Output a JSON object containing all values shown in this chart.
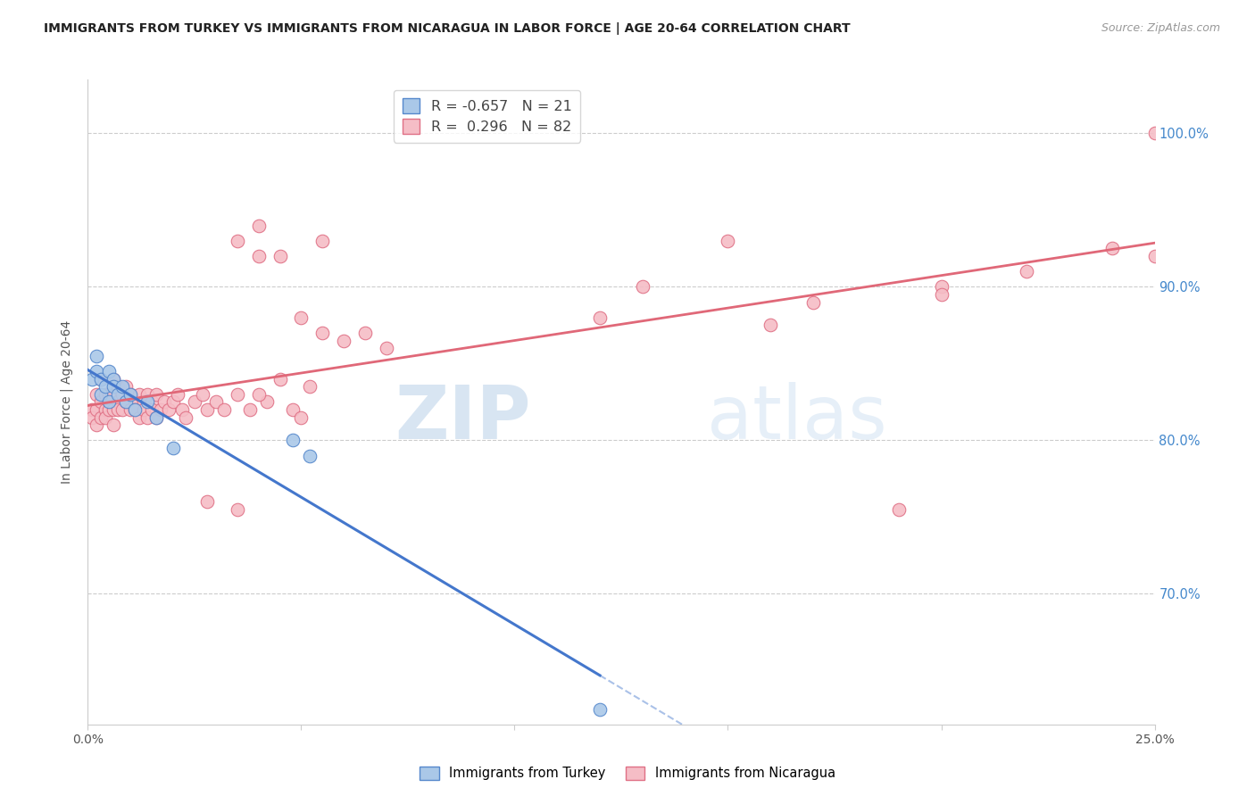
{
  "title": "IMMIGRANTS FROM TURKEY VS IMMIGRANTS FROM NICARAGUA IN LABOR FORCE | AGE 20-64 CORRELATION CHART",
  "source": "Source: ZipAtlas.com",
  "ylabel": "In Labor Force | Age 20-64",
  "xlim": [
    0.0,
    0.25
  ],
  "ylim": [
    0.615,
    1.035
  ],
  "xticks": [
    0.0,
    0.05,
    0.1,
    0.15,
    0.2,
    0.25
  ],
  "xticklabels": [
    "0.0%",
    "",
    "",
    "",
    "",
    "25.0%"
  ],
  "ytick_right_values": [
    1.0,
    0.9,
    0.8,
    0.7
  ],
  "grid_color": "#cccccc",
  "background_color": "#ffffff",
  "turkey_color": "#aac8e8",
  "turkey_edge_color": "#5588cc",
  "nicaragua_color": "#f5bdc6",
  "nicaragua_edge_color": "#e07085",
  "turkey_R": -0.657,
  "turkey_N": 21,
  "nicaragua_R": 0.296,
  "nicaragua_N": 82,
  "turkey_line_color": "#4477cc",
  "nicaragua_line_color": "#e06878",
  "watermark_zip": "ZIP",
  "watermark_atlas": "atlas",
  "turkey_x": [
    0.001,
    0.002,
    0.002,
    0.003,
    0.003,
    0.004,
    0.005,
    0.005,
    0.006,
    0.006,
    0.007,
    0.008,
    0.009,
    0.01,
    0.011,
    0.014,
    0.016,
    0.02,
    0.048,
    0.052,
    0.12
  ],
  "turkey_y": [
    0.84,
    0.845,
    0.855,
    0.83,
    0.84,
    0.835,
    0.825,
    0.845,
    0.84,
    0.835,
    0.83,
    0.835,
    0.825,
    0.83,
    0.82,
    0.825,
    0.815,
    0.795,
    0.8,
    0.79,
    0.625
  ],
  "nicaragua_x": [
    0.001,
    0.001,
    0.002,
    0.002,
    0.002,
    0.003,
    0.003,
    0.003,
    0.004,
    0.004,
    0.004,
    0.005,
    0.005,
    0.005,
    0.006,
    0.006,
    0.006,
    0.007,
    0.007,
    0.007,
    0.008,
    0.008,
    0.009,
    0.009,
    0.01,
    0.01,
    0.011,
    0.011,
    0.012,
    0.012,
    0.013,
    0.013,
    0.014,
    0.014,
    0.015,
    0.015,
    0.016,
    0.016,
    0.017,
    0.018,
    0.019,
    0.02,
    0.021,
    0.022,
    0.023,
    0.025,
    0.027,
    0.028,
    0.03,
    0.032,
    0.035,
    0.038,
    0.042,
    0.045,
    0.048,
    0.052,
    0.028,
    0.035,
    0.04,
    0.05,
    0.055,
    0.06,
    0.065,
    0.07,
    0.04,
    0.045,
    0.05,
    0.055,
    0.035,
    0.04,
    0.12,
    0.13,
    0.15,
    0.16,
    0.17,
    0.19,
    0.2,
    0.2,
    0.22,
    0.24,
    0.25,
    0.25
  ],
  "nicaragua_y": [
    0.82,
    0.815,
    0.83,
    0.82,
    0.81,
    0.84,
    0.825,
    0.815,
    0.83,
    0.82,
    0.815,
    0.825,
    0.82,
    0.83,
    0.84,
    0.82,
    0.81,
    0.835,
    0.825,
    0.82,
    0.83,
    0.82,
    0.825,
    0.835,
    0.83,
    0.82,
    0.825,
    0.82,
    0.83,
    0.815,
    0.825,
    0.82,
    0.83,
    0.815,
    0.825,
    0.82,
    0.83,
    0.815,
    0.82,
    0.825,
    0.82,
    0.825,
    0.83,
    0.82,
    0.815,
    0.825,
    0.83,
    0.82,
    0.825,
    0.82,
    0.83,
    0.82,
    0.825,
    0.84,
    0.82,
    0.835,
    0.76,
    0.755,
    0.83,
    0.815,
    0.87,
    0.865,
    0.87,
    0.86,
    0.94,
    0.92,
    0.88,
    0.93,
    0.93,
    0.92,
    0.88,
    0.9,
    0.93,
    0.875,
    0.89,
    0.755,
    0.9,
    0.895,
    0.91,
    0.925,
    0.92,
    1.0
  ]
}
